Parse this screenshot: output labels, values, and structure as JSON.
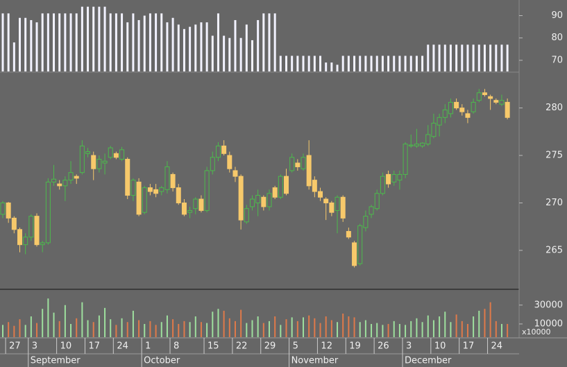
{
  "chart_data": [
    {
      "type": "bar",
      "color": "#f2f2ff",
      "values": [
        91,
        91,
        78,
        89,
        89,
        88,
        87,
        91,
        91,
        91,
        91,
        91,
        91,
        91,
        94,
        94,
        94,
        94,
        94,
        91,
        91,
        91,
        87,
        91,
        88,
        90,
        91,
        91,
        91,
        87,
        89,
        86,
        84,
        85,
        86,
        87,
        87,
        81,
        91,
        81,
        80,
        88,
        80,
        86,
        79,
        88,
        91,
        91,
        91,
        72,
        72,
        72,
        72,
        72,
        72,
        72,
        72,
        69,
        69,
        68,
        72,
        72,
        72,
        72,
        72,
        72,
        72,
        72,
        72,
        72,
        72,
        72,
        72,
        72,
        72,
        77,
        77,
        77,
        77,
        77,
        77,
        77,
        77,
        77,
        77,
        77,
        77,
        77,
        77,
        77
      ],
      "ylim": [
        65,
        97
      ],
      "yticks": [
        70,
        80,
        90
      ]
    },
    {
      "type": "candlestick",
      "up_color": "#4cbb4c",
      "down_color": "#f7c96b",
      "candles": [
        [
          268.8,
          270.2,
          268.4,
          270.0
        ],
        [
          270.0,
          270.1,
          267.9,
          268.4
        ],
        [
          268.4,
          268.6,
          266.8,
          267.2
        ],
        [
          267.2,
          267.4,
          264.8,
          265.6
        ],
        [
          265.6,
          266.8,
          264.6,
          266.4
        ],
        [
          266.4,
          268.8,
          266.0,
          268.6
        ],
        [
          268.6,
          268.9,
          265.4,
          265.6
        ],
        [
          265.6,
          266.0,
          264.8,
          265.8
        ],
        [
          265.8,
          272.6,
          265.6,
          272.2
        ],
        [
          272.2,
          274.0,
          271.8,
          272.5
        ],
        [
          272.0,
          272.4,
          271.4,
          271.8
        ],
        [
          271.8,
          272.8,
          270.2,
          272.4
        ],
        [
          272.4,
          274.4,
          272.0,
          273.2
        ],
        [
          272.8,
          273.0,
          272.0,
          272.6
        ],
        [
          273.2,
          276.6,
          273.0,
          276.0
        ],
        [
          275.2,
          275.8,
          274.8,
          275.4
        ],
        [
          275.0,
          275.4,
          272.4,
          273.6
        ],
        [
          273.6,
          275.0,
          273.2,
          274.6
        ],
        [
          274.2,
          275.2,
          273.0,
          274.4
        ],
        [
          274.8,
          276.0,
          274.6,
          275.8
        ],
        [
          275.2,
          275.4,
          274.6,
          274.8
        ],
        [
          274.6,
          275.9,
          274.4,
          275.6
        ],
        [
          274.6,
          274.8,
          270.4,
          270.8
        ],
        [
          270.8,
          272.6,
          270.2,
          272.4
        ],
        [
          272.2,
          272.6,
          268.6,
          268.8
        ],
        [
          269.0,
          271.8,
          268.8,
          271.6
        ],
        [
          271.6,
          272.0,
          270.8,
          271.2
        ],
        [
          271.4,
          272.0,
          270.6,
          271.0
        ],
        [
          271.2,
          271.8,
          270.8,
          271.6
        ],
        [
          271.4,
          274.4,
          271.0,
          273.8
        ],
        [
          273.0,
          273.2,
          271.2,
          271.6
        ],
        [
          271.6,
          272.0,
          269.8,
          270.0
        ],
        [
          270.0,
          270.4,
          268.6,
          268.8
        ],
        [
          269.0,
          269.6,
          268.4,
          269.2
        ],
        [
          269.4,
          270.6,
          268.8,
          270.4
        ],
        [
          270.4,
          270.8,
          269.0,
          269.2
        ],
        [
          269.2,
          273.8,
          269.0,
          273.4
        ],
        [
          273.4,
          275.4,
          273.0,
          274.8
        ],
        [
          274.8,
          276.4,
          274.4,
          276.0
        ],
        [
          276.0,
          276.6,
          275.0,
          275.2
        ],
        [
          275.0,
          275.4,
          273.2,
          273.6
        ],
        [
          273.4,
          273.8,
          272.2,
          272.8
        ],
        [
          272.8,
          273.0,
          267.2,
          268.2
        ],
        [
          268.0,
          269.8,
          267.8,
          269.4
        ],
        [
          269.6,
          270.8,
          269.2,
          270.4
        ],
        [
          270.0,
          271.4,
          268.6,
          270.8
        ],
        [
          270.6,
          270.8,
          269.2,
          269.6
        ],
        [
          269.6,
          271.4,
          269.2,
          271.0
        ],
        [
          271.6,
          271.8,
          270.4,
          270.6
        ],
        [
          270.6,
          273.0,
          270.4,
          272.8
        ],
        [
          272.8,
          273.6,
          270.8,
          271.0
        ],
        [
          273.4,
          275.2,
          273.2,
          274.8
        ],
        [
          274.2,
          274.6,
          273.4,
          273.8
        ],
        [
          273.6,
          275.2,
          273.4,
          274.8
        ],
        [
          275.0,
          276.6,
          271.4,
          271.8
        ],
        [
          272.4,
          272.8,
          270.6,
          271.2
        ],
        [
          271.2,
          271.6,
          270.2,
          270.6
        ],
        [
          270.4,
          270.6,
          268.2,
          270.0
        ],
        [
          270.0,
          270.2,
          268.6,
          269.0
        ],
        [
          269.2,
          270.8,
          266.8,
          270.6
        ],
        [
          270.6,
          270.8,
          268.0,
          268.4
        ],
        [
          267.0,
          267.4,
          266.2,
          266.4
        ],
        [
          265.8,
          266.0,
          263.2,
          263.4
        ],
        [
          263.6,
          267.8,
          263.4,
          267.6
        ],
        [
          267.4,
          269.2,
          267.0,
          268.6
        ],
        [
          268.8,
          269.8,
          268.4,
          269.6
        ],
        [
          269.4,
          271.4,
          269.2,
          271.0
        ],
        [
          271.0,
          273.2,
          270.8,
          272.8
        ],
        [
          273.0,
          273.4,
          271.6,
          272.0
        ],
        [
          272.2,
          273.4,
          271.8,
          273.0
        ],
        [
          272.4,
          273.4,
          271.4,
          273.0
        ],
        [
          273.0,
          276.4,
          272.6,
          276.2
        ],
        [
          276.0,
          277.2,
          275.8,
          276.1
        ],
        [
          276.0,
          277.8,
          275.8,
          276.2
        ],
        [
          276.0,
          276.4,
          275.8,
          276.3
        ],
        [
          276.2,
          278.2,
          276.0,
          277.2
        ],
        [
          277.0,
          279.4,
          276.8,
          278.4
        ],
        [
          278.2,
          279.4,
          277.0,
          279.0
        ],
        [
          279.0,
          280.4,
          278.4,
          279.8
        ],
        [
          279.4,
          281.0,
          279.0,
          280.6
        ],
        [
          280.6,
          281.0,
          279.8,
          280.0
        ],
        [
          280.0,
          280.4,
          279.2,
          279.6
        ],
        [
          279.4,
          279.8,
          278.4,
          279.0
        ],
        [
          279.6,
          281.0,
          279.4,
          280.6
        ],
        [
          280.8,
          282.0,
          280.6,
          281.6
        ],
        [
          281.6,
          282.0,
          281.2,
          281.4
        ],
        [
          281.2,
          281.4,
          279.8,
          281.0
        ],
        [
          280.8,
          281.0,
          280.4,
          280.6
        ],
        [
          280.4,
          281.4,
          280.2,
          280.8
        ],
        [
          280.6,
          281.0,
          278.8,
          279.0
        ]
      ],
      "ylim": [
        260.9,
        283.7
      ],
      "yticks": [
        265,
        270,
        275,
        280
      ],
      "xticks": [
        {
          "value": 1,
          "label": "27"
        },
        {
          "value": 5,
          "label": "3"
        },
        {
          "value": 10,
          "label": "10"
        },
        {
          "value": 15,
          "label": "17"
        },
        {
          "value": 20,
          "label": "24"
        },
        {
          "value": 25,
          "label": "1"
        },
        {
          "value": 30,
          "label": "8"
        },
        {
          "value": 36,
          "label": "15"
        },
        {
          "value": 41,
          "label": "22"
        },
        {
          "value": 46,
          "label": "29"
        },
        {
          "value": 51,
          "label": "5"
        },
        {
          "value": 56,
          "label": "12"
        },
        {
          "value": 61,
          "label": "19"
        },
        {
          "value": 66,
          "label": "26"
        },
        {
          "value": 71,
          "label": "3"
        },
        {
          "value": 76,
          "label": "10"
        },
        {
          "value": 81,
          "label": "17"
        },
        {
          "value": 86,
          "label": "24"
        }
      ],
      "month_ticks": [
        {
          "value": 5,
          "label": "September"
        },
        {
          "value": 25,
          "label": "October"
        },
        {
          "value": 51,
          "label": "November"
        },
        {
          "value": 71,
          "label": "December"
        }
      ]
    },
    {
      "type": "volume",
      "up_color": "#9ee09e",
      "down_color": "#e07a4a",
      "unit_label": "x10000",
      "values": [
        9000,
        12000,
        8000,
        15000,
        9000,
        18000,
        11000,
        26000,
        37000,
        22000,
        13000,
        30000,
        10000,
        16000,
        33000,
        14000,
        12000,
        19000,
        27000,
        15000,
        9000,
        16000,
        12000,
        24000,
        14000,
        10000,
        13000,
        9000,
        12000,
        19000,
        15000,
        10000,
        13000,
        12000,
        18000,
        12000,
        11000,
        23000,
        26000,
        24000,
        16000,
        13000,
        25000,
        11000,
        14000,
        18000,
        11000,
        13000,
        18000,
        9000,
        15000,
        17000,
        13000,
        17000,
        19000,
        16000,
        11000,
        18000,
        14000,
        12000,
        21000,
        18000,
        17000,
        12000,
        14000,
        10000,
        11000,
        9000,
        10000,
        13000,
        10000,
        9000,
        13000,
        16000,
        12000,
        19000,
        14000,
        18000,
        23000,
        12000,
        20000,
        13000,
        10000,
        18000,
        24000,
        26000,
        33000,
        13000,
        10000,
        10000
      ],
      "ylim": [
        -4000,
        46000
      ],
      "yticks": [
        10000,
        30000
      ]
    }
  ]
}
